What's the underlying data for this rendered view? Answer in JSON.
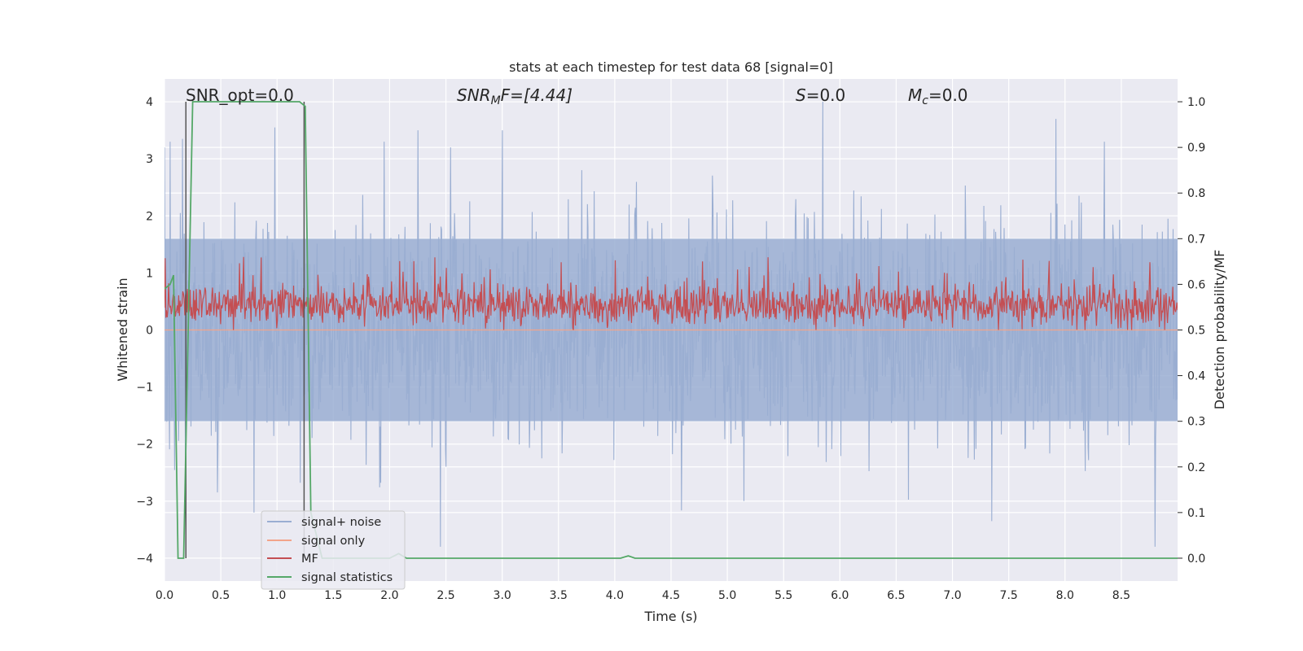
{
  "chart_data": {
    "type": "line",
    "title": "stats at each timestep for test data 68 [signal=0]",
    "xlabel": "Time (s)",
    "ylabel": "Whitened strain",
    "ylabel_right": "Detection probability/MF",
    "xlim": [
      0.0,
      9.0
    ],
    "ylim": [
      -4.4,
      4.4
    ],
    "ylim_right": [
      -0.05,
      1.05
    ],
    "x_ticks": [
      "0.0",
      "0.5",
      "1.0",
      "1.5",
      "2.0",
      "2.5",
      "3.0",
      "3.5",
      "4.0",
      "4.5",
      "5.0",
      "5.5",
      "6.0",
      "6.5",
      "7.0",
      "7.5",
      "8.0",
      "8.5"
    ],
    "y_ticks": [
      "4",
      "3",
      "2",
      "1",
      "0",
      "−1",
      "−2",
      "−3",
      "−4"
    ],
    "y_ticks_right": [
      "1.0",
      "0.9",
      "0.8",
      "0.7",
      "0.6",
      "0.5",
      "0.4",
      "0.3",
      "0.2",
      "0.1",
      "0.0"
    ],
    "grid": true,
    "legend_position": "lower-left",
    "annotations": {
      "snr_opt": "SNR_opt=0.0",
      "snr_mf_sym": "SNR",
      "snr_mf_sub": "M",
      "snr_mf_rest": "F=[4.44]",
      "s_sym": "S",
      "s_rest": "=0.0",
      "mc_sym": "M",
      "mc_sub": "c",
      "mc_rest": "=0.0"
    },
    "vertical_markers_x": [
      0.19,
      1.24
    ],
    "series": [
      {
        "name": "signal+ noise",
        "axis": "left",
        "color": "#9aaed2",
        "description": "dense noise trace, approx. in [-3.9, 4.0], mostly within [-2.5, 3.0]",
        "envelope_typical": [
          -1.6,
          1.6
        ],
        "spikes": [
          [
            0.05,
            3.3
          ],
          [
            0.16,
            3.35
          ],
          [
            0.98,
            3.55
          ],
          [
            1.95,
            3.3
          ],
          [
            2.25,
            3.5
          ],
          [
            3.0,
            3.5
          ],
          [
            5.85,
            4.0
          ],
          [
            7.92,
            3.7
          ],
          [
            8.35,
            3.3
          ],
          [
            2.45,
            -3.8
          ],
          [
            7.35,
            -3.35
          ],
          [
            8.8,
            -3.8
          ],
          [
            5.15,
            -3.0
          ]
        ]
      },
      {
        "name": "signal only",
        "axis": "left",
        "color": "#f2a48a",
        "x": [
          0.0,
          9.0
        ],
        "y": [
          0.0,
          0.0
        ]
      },
      {
        "name": "MF",
        "axis": "right",
        "color": "#c44e52",
        "description": "matched-filter output, approx. in [0.5, 0.66]",
        "range": [
          0.5,
          0.66
        ]
      },
      {
        "name": "signal statistics",
        "axis": "right",
        "color": "#55a868",
        "x": [
          0.0,
          0.05,
          0.08,
          0.12,
          0.17,
          0.25,
          1.0,
          1.2,
          1.25,
          1.3,
          1.4,
          2.0,
          2.08,
          2.15,
          2.5,
          4.05,
          4.12,
          4.18,
          9.0
        ],
        "y": [
          0.59,
          0.6,
          0.62,
          0.0,
          0.0,
          1.0,
          1.0,
          1.0,
          0.99,
          0.1,
          0.0,
          0.0,
          0.01,
          0.0,
          0.0,
          0.0,
          0.005,
          0.0,
          0.0
        ]
      }
    ]
  }
}
